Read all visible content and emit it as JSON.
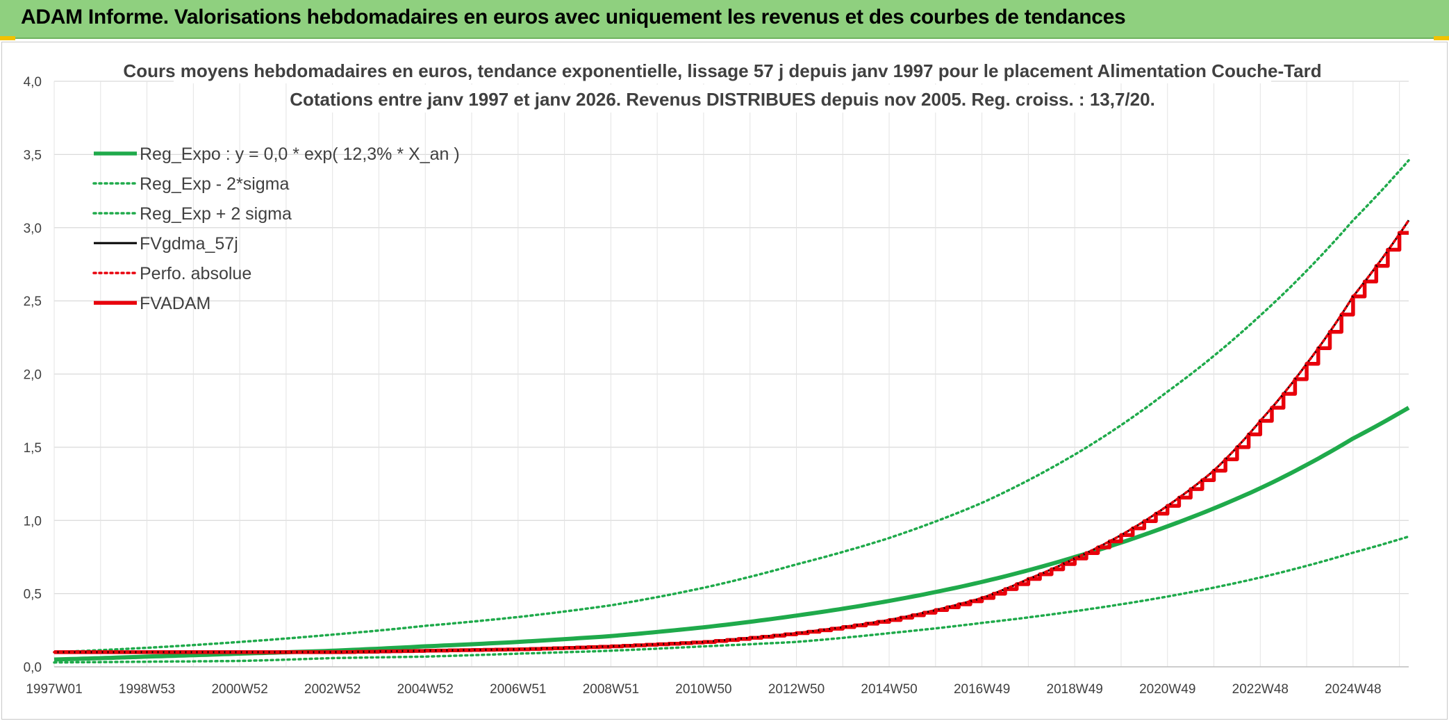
{
  "header": {
    "title": "ADAM Informe. Valorisations hebdomadaires en euros avec uniquement les revenus et des courbes de tendances"
  },
  "chart_data": {
    "type": "line",
    "title": "Cours moyens hebdomadaires en euros, tendance exponentielle, lissage 57 j depuis janv 1997 pour le placement Alimentation Couche-Tard",
    "subtitle": "Cotations entre janv 1997 et janv 2026. Revenus DISTRIBUES depuis nov 2005. Reg. croiss. : 13,7/20.",
    "xlabel": "",
    "ylabel": "",
    "x_tick_labels": [
      "1997W01",
      "1998W53",
      "2000W52",
      "2002W52",
      "2004W52",
      "2006W51",
      "2008W51",
      "2010W50",
      "2012W50",
      "2014W50",
      "2016W49",
      "2018W49",
      "2020W49",
      "2022W48",
      "2024W48"
    ],
    "x_tick_years": [
      1997.0,
      1999.0,
      2001.0,
      2003.0,
      2005.0,
      2007.0,
      2009.0,
      2011.0,
      2013.0,
      2015.0,
      2017.0,
      2019.0,
      2021.0,
      2023.0,
      2025.0
    ],
    "xlim": [
      1997.0,
      2026.2
    ],
    "y_tick_labels": [
      "0,0",
      "0,5",
      "1,0",
      "1,5",
      "2,0",
      "2,5",
      "3,0",
      "3,5",
      "4,0"
    ],
    "ylim": [
      0,
      4
    ],
    "grid": true,
    "legend_position": "top-left",
    "series": [
      {
        "name": "Reg_Expo : y = 0,0 * exp( 12,3% *  X_an )",
        "color": "#1faa4b",
        "style": "solid-thick",
        "x": [
          1997.0,
          1999.0,
          2001.0,
          2003.0,
          2005.0,
          2007.0,
          2009.0,
          2011.0,
          2013.0,
          2015.0,
          2017.0,
          2019.0,
          2021.0,
          2023.0,
          2025.0,
          2026.2
        ],
        "y": [
          0.05,
          0.07,
          0.09,
          0.11,
          0.14,
          0.17,
          0.21,
          0.27,
          0.35,
          0.45,
          0.58,
          0.75,
          0.96,
          1.22,
          1.56,
          1.77
        ]
      },
      {
        "name": "Reg_Exp - 2*sigma",
        "color": "#1faa4b",
        "style": "dotted",
        "x": [
          1997.0,
          1999.0,
          2001.0,
          2003.0,
          2005.0,
          2007.0,
          2009.0,
          2011.0,
          2013.0,
          2015.0,
          2017.0,
          2019.0,
          2021.0,
          2023.0,
          2025.0,
          2026.2
        ],
        "y": [
          0.03,
          0.035,
          0.04,
          0.06,
          0.07,
          0.09,
          0.11,
          0.14,
          0.17,
          0.23,
          0.3,
          0.38,
          0.48,
          0.61,
          0.78,
          0.89
        ]
      },
      {
        "name": "Reg_Exp + 2 sigma",
        "color": "#1faa4b",
        "style": "dotted",
        "x": [
          1997.0,
          1999.0,
          2001.0,
          2003.0,
          2005.0,
          2007.0,
          2009.0,
          2011.0,
          2013.0,
          2015.0,
          2017.0,
          2019.0,
          2021.0,
          2023.0,
          2025.0,
          2026.2
        ],
        "y": [
          0.1,
          0.13,
          0.17,
          0.22,
          0.28,
          0.34,
          0.42,
          0.54,
          0.7,
          0.88,
          1.12,
          1.45,
          1.88,
          2.4,
          3.05,
          3.46
        ]
      },
      {
        "name": "FVgdma_57j",
        "color": "#000000",
        "style": "solid",
        "x": [
          1997.0,
          1999.0,
          2001.0,
          2003.0,
          2005.0,
          2007.0,
          2009.0,
          2011.0,
          2013.0,
          2015.0,
          2017.0,
          2018.0,
          2019.0,
          2020.0,
          2021.0,
          2022.0,
          2023.0,
          2024.0,
          2025.0,
          2026.2
        ],
        "y": [
          0.1,
          0.1,
          0.1,
          0.1,
          0.11,
          0.12,
          0.14,
          0.17,
          0.23,
          0.32,
          0.47,
          0.6,
          0.74,
          0.9,
          1.1,
          1.34,
          1.68,
          2.07,
          2.53,
          3.05
        ]
      },
      {
        "name": "Perfo. absolue",
        "color": "#e8000b",
        "style": "dotted",
        "x": [
          1997.0,
          1999.0,
          2001.0,
          2003.0,
          2005.0,
          2007.0,
          2009.0,
          2011.0,
          2013.0,
          2015.0,
          2017.0,
          2018.0,
          2019.0,
          2020.0,
          2021.0,
          2022.0,
          2023.0,
          2024.0,
          2025.0,
          2026.2
        ],
        "y": [
          0.1,
          0.1,
          0.1,
          0.1,
          0.11,
          0.12,
          0.14,
          0.17,
          0.23,
          0.32,
          0.47,
          0.6,
          0.74,
          0.9,
          1.1,
          1.34,
          1.68,
          2.07,
          2.53,
          3.05
        ]
      },
      {
        "name": "FVADAM",
        "color": "#e8000b",
        "style": "stepped-thick",
        "x": [
          1997.0,
          1999.0,
          2001.0,
          2003.0,
          2005.0,
          2007.0,
          2009.0,
          2011.0,
          2013.0,
          2015.0,
          2017.0,
          2018.0,
          2019.0,
          2020.0,
          2021.0,
          2022.0,
          2023.0,
          2024.0,
          2025.0,
          2026.2
        ],
        "y": [
          0.1,
          0.1,
          0.1,
          0.1,
          0.11,
          0.12,
          0.14,
          0.17,
          0.23,
          0.32,
          0.47,
          0.6,
          0.74,
          0.9,
          1.1,
          1.34,
          1.68,
          2.07,
          2.53,
          3.06
        ]
      }
    ]
  }
}
